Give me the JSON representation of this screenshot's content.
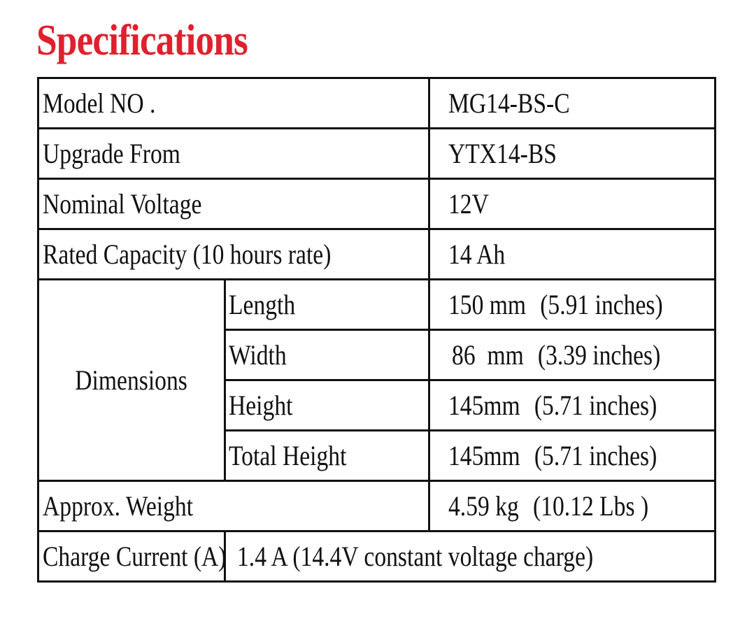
{
  "title": "Specifications",
  "rows": {
    "model": {
      "label": "Model NO .",
      "value": "MG14-BS-C"
    },
    "upgrade": {
      "label": "Upgrade From",
      "value": "YTX14-BS"
    },
    "voltage": {
      "label": "Nominal Voltage",
      "value": "12V"
    },
    "capacity": {
      "label": "Rated Capacity (10 hours rate)",
      "value": "14 Ah"
    },
    "dimensions": {
      "label": "Dimensions",
      "length": {
        "label": "Length",
        "mm": "150 mm",
        "inches": "(5.91 inches)"
      },
      "width": {
        "label": "Width",
        "mm": "86  mm",
        "inches": "(3.39 inches)"
      },
      "height": {
        "label": "Height",
        "mm": "145mm",
        "inches": "(5.71 inches)"
      },
      "total_height": {
        "label": "Total Height",
        "mm": "145mm",
        "inches": "(5.71 inches)"
      }
    },
    "weight": {
      "label": "Approx. Weight",
      "kg": "4.59 kg",
      "lbs": "(10.12 Lbs )"
    },
    "charge": {
      "label": "Charge Current (A)",
      "value": "1.4 A (14.4V constant voltage charge)"
    }
  }
}
